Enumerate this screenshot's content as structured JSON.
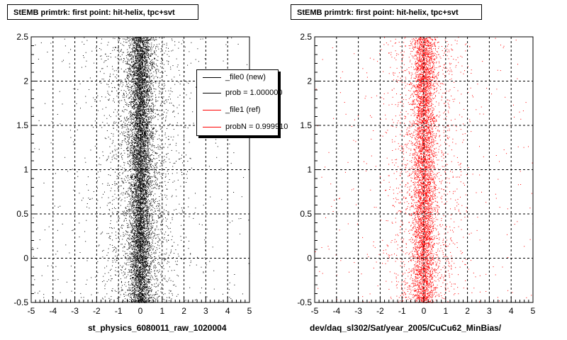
{
  "footer_text": "",
  "colors": {
    "new": "#000000",
    "ref": "#ff0000",
    "grid": "#000000"
  },
  "chart_data": [
    {
      "type": "scatter",
      "title": "StEMB primtrk: first point: hit-helix, tpc+svt",
      "xlabel": "st_physics_6080011_raw_1020004",
      "ylabel": "",
      "xlim": [
        -5,
        5
      ],
      "ylim": [
        -0.5,
        2.5
      ],
      "xticks": [
        -5,
        -4,
        -3,
        -2,
        -1,
        0,
        1,
        2,
        3,
        4,
        5
      ],
      "yticks": [
        -0.5,
        0,
        0.5,
        1,
        1.5,
        2,
        2.5
      ],
      "grid": true,
      "legend_position": "top-right",
      "legend": [
        {
          "label": "_file0 (new)",
          "color": "#000000"
        },
        {
          "label": "prob = 1.000000",
          "color": "#000000"
        },
        {
          "label": "_file1 (ref)",
          "color": "#ff0000"
        },
        {
          "label": "probN = 0.999910",
          "color": "#ff0000"
        }
      ],
      "series": [
        {
          "color": "#000000",
          "x_center": 0.0,
          "x_core_width": 0.25,
          "x_wide_width": 0.9,
          "points": 9000
        }
      ]
    },
    {
      "type": "scatter",
      "title": "StEMB primtrk: first point: hit-helix, tpc+svt",
      "xlabel": "dev/daq_sl302/Sat/year_2005/CuCu62_MinBias/",
      "ylabel": "",
      "xlim": [
        -5,
        5
      ],
      "ylim": [
        -0.5,
        2.5
      ],
      "xticks": [
        -5,
        -4,
        -3,
        -2,
        -1,
        0,
        1,
        2,
        3,
        4,
        5
      ],
      "yticks": [
        -0.5,
        0,
        0.5,
        1,
        1.5,
        2,
        2.5
      ],
      "grid": true,
      "series": [
        {
          "color": "#ff0000",
          "x_center": 0.0,
          "x_core_width": 0.25,
          "x_wide_width": 0.9,
          "points": 6500
        }
      ]
    }
  ]
}
